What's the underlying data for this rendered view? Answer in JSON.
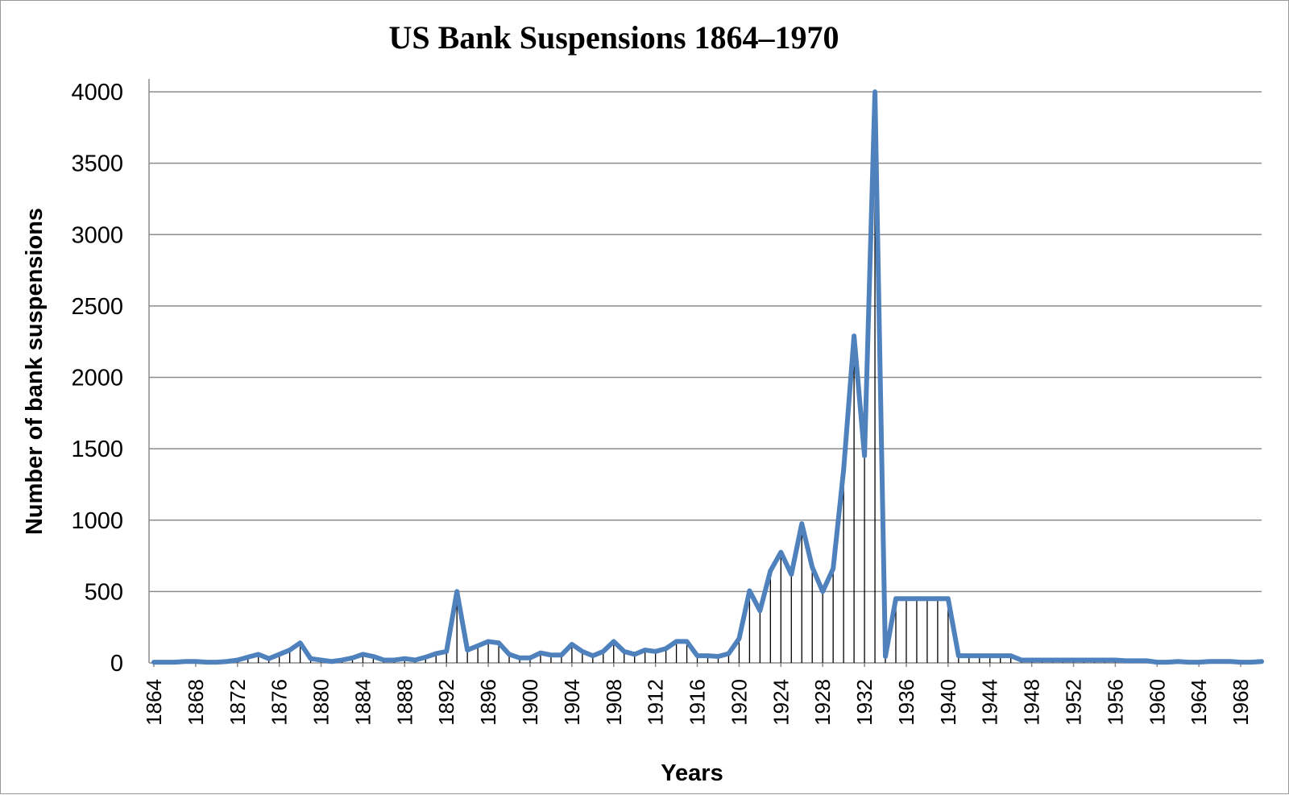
{
  "chart_data": {
    "type": "line",
    "title": "US Bank Suspensions 1864–1970",
    "xlabel": "Years",
    "ylabel": "Number of bank suspensions",
    "xlim": [
      1864,
      1970
    ],
    "ylim": [
      0,
      4000
    ],
    "y_ticks": [
      0,
      500,
      1000,
      1500,
      2000,
      2500,
      3000,
      3500,
      4000
    ],
    "x_tick_labels": [
      "1864",
      "1868",
      "1872",
      "1876",
      "1880",
      "1884",
      "1888",
      "1892",
      "1896",
      "1900",
      "1904",
      "1908",
      "1912",
      "1916",
      "1920",
      "1924",
      "1928",
      "1932",
      "1936",
      "1940",
      "1944",
      "1948",
      "1952",
      "1956",
      "1960",
      "1964",
      "1968"
    ],
    "grid": "horizontal",
    "legend": "none",
    "drop_lines": true,
    "line_color": "#4f81bd",
    "drop_line_color": "#000000",
    "series": [
      {
        "x": [
          1864,
          1865,
          1866,
          1867,
          1868,
          1869,
          1870,
          1871,
          1872,
          1873,
          1874,
          1875,
          1876,
          1877,
          1878,
          1879,
          1880,
          1881,
          1882,
          1883,
          1884,
          1885,
          1886,
          1887,
          1888,
          1889,
          1890,
          1891,
          1892,
          1893,
          1894,
          1895,
          1896,
          1897,
          1898,
          1899,
          1900,
          1901,
          1902,
          1903,
          1904,
          1905,
          1906,
          1907,
          1908,
          1909,
          1910,
          1911,
          1912,
          1913,
          1914,
          1915,
          1916,
          1917,
          1918,
          1919,
          1920,
          1921,
          1922,
          1923,
          1924,
          1925,
          1926,
          1927,
          1928,
          1929,
          1930,
          1931,
          1932,
          1933,
          1934,
          1935,
          1936,
          1937,
          1938,
          1939,
          1940,
          1941,
          1942,
          1943,
          1944,
          1945,
          1946,
          1947,
          1948,
          1949,
          1950,
          1951,
          1952,
          1953,
          1954,
          1955,
          1956,
          1957,
          1958,
          1959,
          1960,
          1961,
          1962,
          1963,
          1964,
          1965,
          1966,
          1967,
          1968,
          1969,
          1970
        ],
        "values": [
          5,
          5,
          5,
          10,
          10,
          5,
          5,
          10,
          20,
          40,
          60,
          30,
          60,
          90,
          140,
          30,
          20,
          10,
          20,
          35,
          60,
          45,
          20,
          20,
          30,
          20,
          40,
          65,
          80,
          500,
          90,
          120,
          150,
          140,
          60,
          35,
          35,
          70,
          55,
          55,
          130,
          80,
          50,
          80,
          150,
          80,
          60,
          90,
          80,
          100,
          150,
          150,
          50,
          50,
          45,
          65,
          170,
          505,
          365,
          645,
          775,
          620,
          975,
          670,
          500,
          660,
          1350,
          2290,
          1450,
          4000,
          45,
          450,
          450,
          450,
          450,
          450,
          450,
          50,
          50,
          50,
          50,
          50,
          50,
          20,
          20,
          20,
          20,
          20,
          20,
          20,
          20,
          20,
          20,
          15,
          15,
          15,
          5,
          5,
          10,
          5,
          5,
          10,
          10,
          10,
          5,
          5,
          10
        ]
      }
    ]
  }
}
